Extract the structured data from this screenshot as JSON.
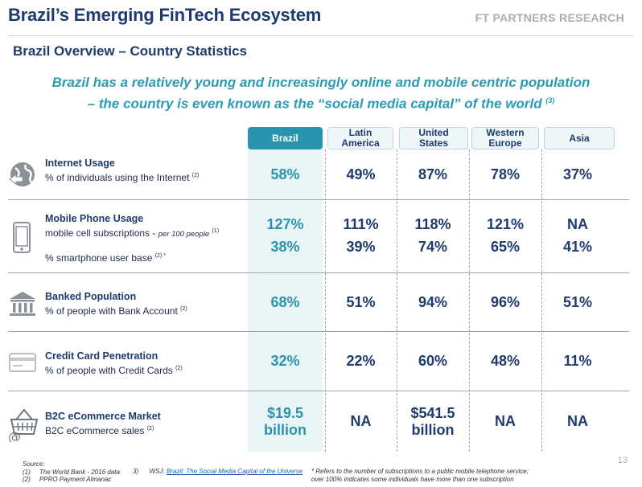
{
  "title": "Brazil’s Emerging FinTech Ecosystem",
  "brand": "FT PARTNERS RESEARCH",
  "subtitle": "Brazil Overview – Country Statistics",
  "headline_line1": "Brazil has a relatively young and increasingly online and mobile centric population",
  "headline_line2": "– the country is even known as the “social media capital” of the world",
  "headline_sup": "(3)",
  "columns": [
    "Brazil",
    "Latin America",
    "United States",
    "Western Europe",
    "Asia"
  ],
  "columns_split": [
    [
      "Brazil",
      ""
    ],
    [
      "Latin",
      "America"
    ],
    [
      "United",
      "States"
    ],
    [
      "Western",
      "Europe"
    ],
    [
      "Asia",
      ""
    ]
  ],
  "rows": {
    "internet": {
      "name": "Internet Usage",
      "desc": "% of individuals using the Internet",
      "sup": "(2)",
      "icon": "globe-icon",
      "values": [
        "58%",
        "49%",
        "87%",
        "78%",
        "37%"
      ]
    },
    "mobile": {
      "name": "Mobile Phone Usage",
      "desc": "mobile cell subscriptions -",
      "desc_small": "per 100 people",
      "sup": "(1)",
      "desc2": "% smartphone user base",
      "sup2": "(2) *",
      "icon": "mobile-phone-icon",
      "values": [
        "127%",
        "111%",
        "118%",
        "121%",
        "NA"
      ],
      "values2": [
        "38%",
        "39%",
        "74%",
        "65%",
        "41%"
      ]
    },
    "banked": {
      "name": "Banked Population",
      "desc": "% of people with Bank Account",
      "sup": "(2)",
      "icon": "bank-icon",
      "values": [
        "68%",
        "51%",
        "94%",
        "96%",
        "51%"
      ]
    },
    "credit": {
      "name": "Credit Card Penetration",
      "desc": "% of people with Credit Cards",
      "sup": "(2)",
      "icon": "credit-card-icon",
      "values": [
        "32%",
        "22%",
        "60%",
        "48%",
        "11%"
      ]
    },
    "ecommerce": {
      "name": "B2C eCommerce Market",
      "desc": "B2C eCommerce sales",
      "sup": "(2)",
      "icon": "shopping-basket-icon",
      "values": [
        [
          "$19.5",
          "billion"
        ],
        [
          "NA",
          ""
        ],
        [
          "$541.5",
          "billion"
        ],
        [
          "NA",
          ""
        ],
        [
          "NA",
          ""
        ]
      ]
    }
  },
  "footer": {
    "source_label": "Source:",
    "s1": "(1)     The World Bank - 2016 data",
    "s2": "(2)     PPRO Payment Almanac",
    "s3_num": "3)",
    "s3_pre": "WSJ:",
    "s3_link": "Brazil: The Social Media Capital of the Universe",
    "note1": "* Refers to the number of subscriptions to a public mobile telephone service;",
    "note2": "over 100% indicates some individuals have more than one subscription"
  },
  "page_number": "13",
  "colors": {
    "navy": "#1e3a6e",
    "teal": "#2a93ad",
    "headline": "#2a9bb5",
    "brazil_bg": "#e9f4f6"
  }
}
